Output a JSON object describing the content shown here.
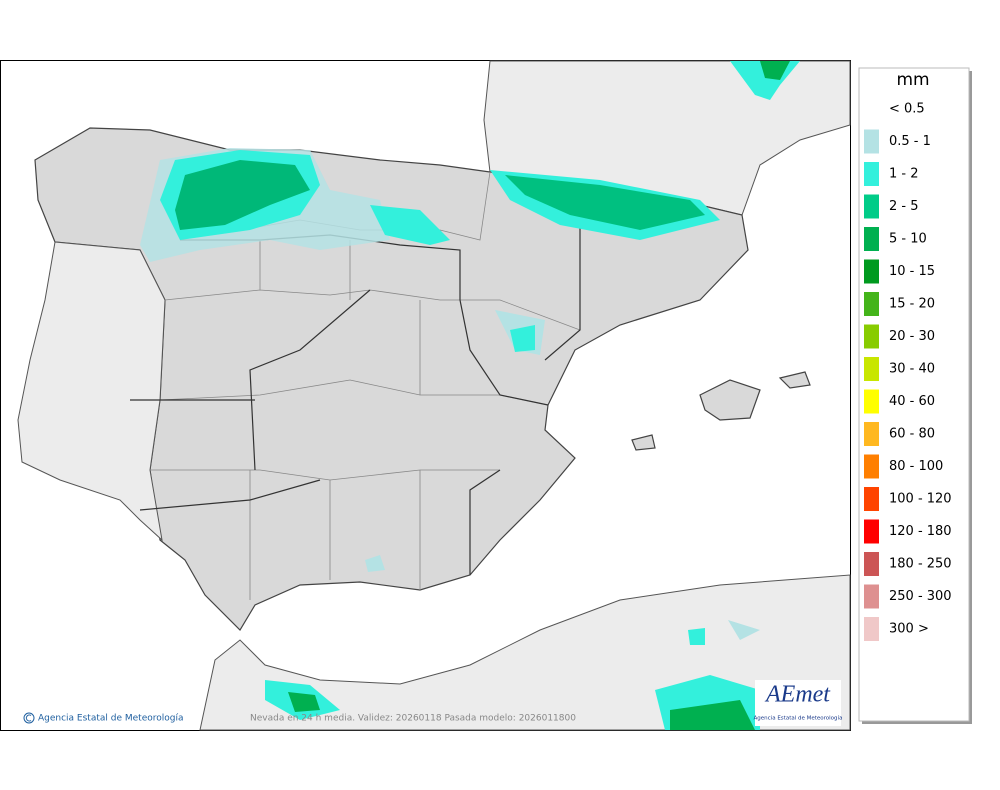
{
  "footer": {
    "agency": "Agencia Estatal de Meteorología",
    "caption": "Nevada en 24 h media. Validez: 20260118 Pasada modelo: 2026011800"
  },
  "logo": {
    "name": "AEmet",
    "subtitle": "Agencia Estatal de Meteorología"
  },
  "legend": {
    "title": "mm",
    "entries": [
      {
        "label": "< 0.5"
      },
      {
        "label": "0.5 - 1",
        "color": "#b4e2e4"
      },
      {
        "label": "1 - 2",
        "color": "#33f0dc"
      },
      {
        "label": "2 - 5",
        "color": "#00cc88"
      },
      {
        "label": "5 - 10",
        "color": "#00b050"
      },
      {
        "label": "10 - 15",
        "color": "#009a1f"
      },
      {
        "label": "15 - 20",
        "color": "#44b41a"
      },
      {
        "label": "20 - 30",
        "color": "#88cc00"
      },
      {
        "label": "30 - 40",
        "color": "#c8e600"
      },
      {
        "label": "40 - 60",
        "color": "#ffff00"
      },
      {
        "label": "60 - 80",
        "color": "#ffb820"
      },
      {
        "label": "80 - 100",
        "color": "#ff7f00"
      },
      {
        "label": "100 - 120",
        "color": "#ff4400"
      },
      {
        "label": "120 - 180",
        "color": "#ff0000"
      },
      {
        "label": "180 - 250",
        "color": "#cc5555"
      },
      {
        "label": "250 - 300",
        "color": "#de9090"
      },
      {
        "label": "300 >",
        "color": "#f0c8c8"
      }
    ]
  }
}
